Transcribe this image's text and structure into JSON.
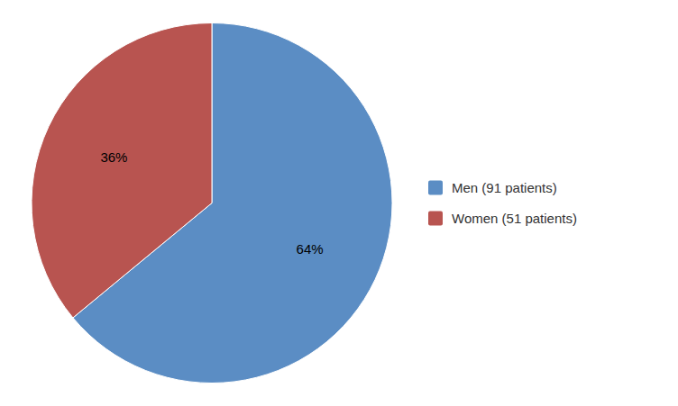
{
  "chart_data": {
    "type": "pie",
    "categories": [
      "Men (91 patients)",
      "Women (51 patients)"
    ],
    "values": [
      64,
      36
    ],
    "value_labels": [
      "64%",
      "36%"
    ],
    "colors": [
      "#5B8DC4",
      "#B85450"
    ],
    "data_labels": true,
    "legend": "right"
  }
}
